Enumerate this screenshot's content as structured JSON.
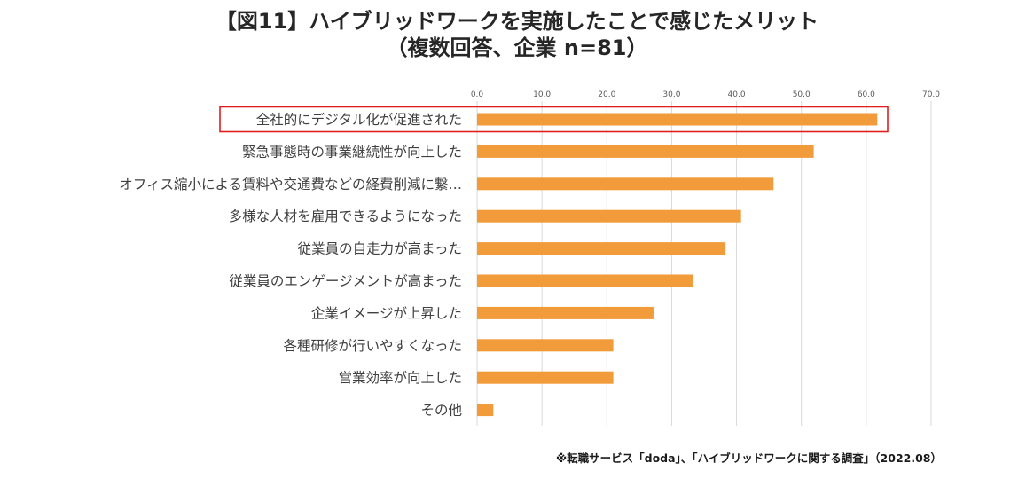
{
  "chart_data": {
    "type": "bar",
    "orientation": "horizontal",
    "title": "【図11】ハイブリッドワークを実施したことで感じたメリット",
    "subtitle": "（複数回答、企業 n=81）",
    "categories": [
      "全社的にデジタル化が促進された",
      "緊急事態時の事業継続性が向上した",
      "オフィス縮小による賃料や交通費などの経費削減に繋…",
      "多様な人材を雇用できるようになった",
      "従業員の自走力が高まった",
      "従業員のエンゲージメントが高まった",
      "企業イメージが上昇した",
      "各種研修が行いやすくなった",
      "営業効率が向上した",
      "その他"
    ],
    "values": [
      61.7,
      51.9,
      45.7,
      40.7,
      38.3,
      33.3,
      27.2,
      21.0,
      21.0,
      2.5
    ],
    "xlim": [
      0,
      70
    ],
    "xticks": [
      "0.0",
      "10.0",
      "20.0",
      "30.0",
      "40.0",
      "50.0",
      "60.0",
      "70.0"
    ],
    "highlighted_category": "全社的にデジタル化が促進された",
    "grid": true,
    "bar_color": "#F29B3B",
    "highlight_color": "#E02020",
    "source": "※転職サービス「doda」、「ハイブリッドワークに関する調査」（2022.08）"
  }
}
